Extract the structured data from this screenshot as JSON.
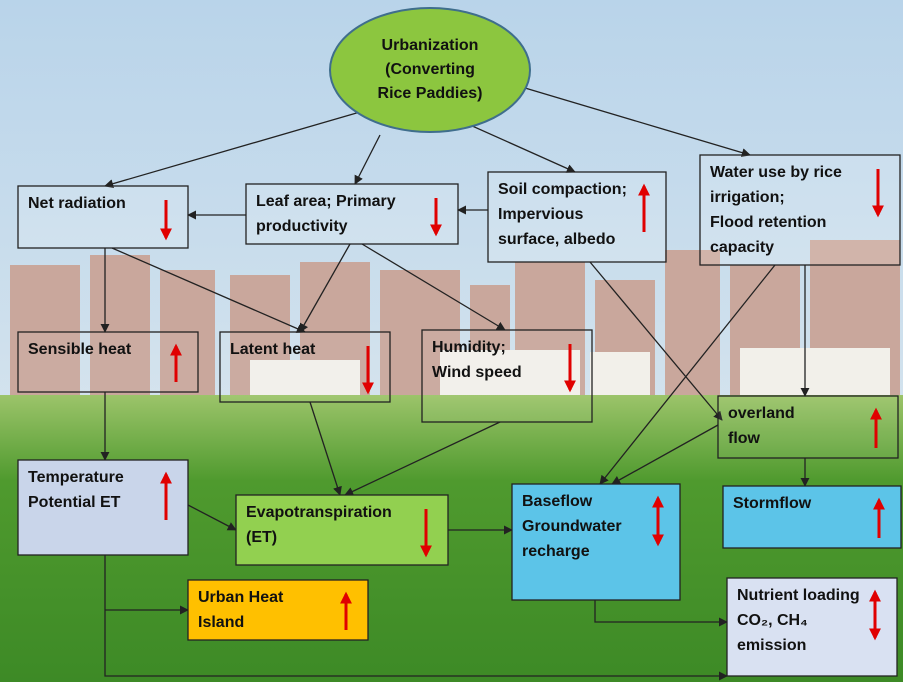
{
  "nodes": [
    {
      "lines": [
        "Urbanization",
        "(Converting",
        "Rice Paddies)"
      ]
    },
    {
      "lines": [
        "Net radiation"
      ],
      "trend": "down"
    },
    {
      "lines": [
        "Leaf area; Primary",
        "productivity"
      ],
      "trend": "down"
    },
    {
      "lines": [
        "Soil compaction;",
        "Impervious",
        "surface, albedo"
      ],
      "trend": "up"
    },
    {
      "lines": [
        "Water use by rice",
        "irrigation;",
        "Flood retention",
        "capacity"
      ],
      "trend": "down"
    },
    {
      "lines": [
        "Sensible heat"
      ],
      "trend": "up"
    },
    {
      "lines": [
        "Latent heat"
      ],
      "trend": "down"
    },
    {
      "lines": [
        "Humidity;",
        "Wind speed"
      ],
      "trend": "down"
    },
    {
      "lines": [
        "overland",
        "flow"
      ],
      "trend": "up"
    },
    {
      "lines": [
        "Temperature",
        "Potential ET"
      ],
      "trend": "up"
    },
    {
      "lines": [
        "Evapotranspiration",
        "(ET)"
      ],
      "trend": "down"
    },
    {
      "lines": [
        "Baseflow",
        "Groundwater",
        "recharge"
      ],
      "trend": "both"
    },
    {
      "lines": [
        "Stormflow"
      ],
      "trend": "up"
    },
    {
      "lines": [
        "Urban Heat",
        "Island"
      ],
      "trend": "up"
    },
    {
      "lines": [
        "Nutrient loading",
        "CO₂, CH₄",
        "emission"
      ],
      "trend": "both"
    }
  ]
}
